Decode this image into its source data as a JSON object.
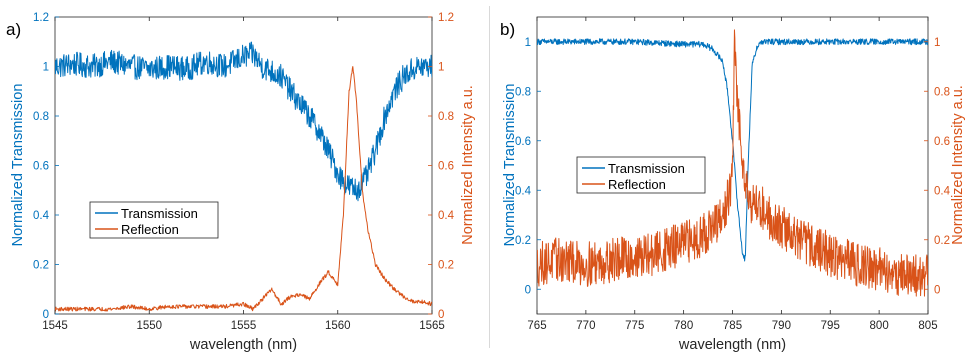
{
  "colors": {
    "transmission": "#0072BD",
    "reflection": "#D95319",
    "axis": "#262626",
    "legend_border": "#262626"
  },
  "chart_data": [
    {
      "type": "line",
      "panel_label": "a)",
      "xlabel": "wavelength (nm)",
      "ylabel_left": "Normalized Transmission",
      "ylabel_right": "Normalized Intensity a.u.",
      "xlim": [
        1545,
        1565
      ],
      "ylim_left": [
        0,
        1.2
      ],
      "ylim_right": [
        0,
        1.2
      ],
      "x_ticks": [
        "1545",
        "1550",
        "1555",
        "1560",
        "1565"
      ],
      "y_ticks_left": [
        "0",
        "0.2",
        "0.4",
        "0.6",
        "0.8",
        "1",
        "1.2"
      ],
      "y_ticks_right": [
        "0",
        "0.2",
        "0.4",
        "0.6",
        "0.8",
        "1",
        "1.2"
      ],
      "grid": false,
      "legend_position": "center-left",
      "series": [
        {
          "name": "Transmission",
          "axis": "left",
          "x": [
            1545,
            1546,
            1547,
            1548,
            1549,
            1550,
            1551,
            1552,
            1553,
            1554,
            1555,
            1555.5,
            1556,
            1557,
            1557.5,
            1558,
            1558.5,
            1559,
            1559.5,
            1560,
            1560.5,
            1561,
            1561.5,
            1562,
            1562.5,
            1563,
            1563.5,
            1564,
            1564.5,
            1565
          ],
          "y": [
            1.0,
            1.01,
            1.0,
            1.02,
            1.0,
            0.99,
            1.0,
            0.99,
            1.02,
            1.0,
            1.04,
            1.05,
            1.0,
            0.96,
            0.9,
            0.85,
            0.8,
            0.74,
            0.66,
            0.57,
            0.52,
            0.5,
            0.55,
            0.66,
            0.8,
            0.9,
            0.96,
            0.99,
            1.0,
            1.0
          ],
          "noise_amplitude": 0.05
        },
        {
          "name": "Reflection",
          "axis": "right",
          "x": [
            1545,
            1546,
            1547,
            1548,
            1549,
            1550,
            1551,
            1552,
            1553,
            1554,
            1555,
            1555.5,
            1556,
            1556.5,
            1557,
            1557.5,
            1558,
            1558.5,
            1559,
            1559.5,
            1560,
            1560.3,
            1560.6,
            1560.8,
            1561,
            1561.3,
            1561.6,
            1562,
            1562.5,
            1563,
            1563.5,
            1564,
            1564.5,
            1565
          ],
          "y": [
            0.02,
            0.02,
            0.02,
            0.02,
            0.03,
            0.02,
            0.03,
            0.03,
            0.03,
            0.03,
            0.04,
            0.02,
            0.06,
            0.1,
            0.04,
            0.07,
            0.08,
            0.06,
            0.12,
            0.17,
            0.12,
            0.4,
            0.9,
            1.0,
            0.85,
            0.5,
            0.34,
            0.2,
            0.14,
            0.1,
            0.07,
            0.05,
            0.05,
            0.04
          ],
          "noise_amplitude": 0.008
        }
      ]
    },
    {
      "type": "line",
      "panel_label": "b)",
      "xlabel": "wavelength (nm)",
      "ylabel_left": "Normalized Transmission",
      "ylabel_right": "Normalized Intensity a.u.",
      "xlim": [
        765,
        805
      ],
      "ylim_left": [
        -0.1,
        1.1
      ],
      "ylim_right": [
        -0.1,
        1.1
      ],
      "x_ticks": [
        "765",
        "770",
        "775",
        "780",
        "785",
        "790",
        "795",
        "800",
        "805"
      ],
      "y_ticks_left": [
        "0",
        "0.2",
        "0.4",
        "0.6",
        "0.8",
        "1"
      ],
      "y_ticks_right": [
        "0",
        "0.2",
        "0.4",
        "0.6",
        "0.8",
        "1"
      ],
      "grid": false,
      "legend_position": "center-left",
      "series": [
        {
          "name": "Transmission",
          "axis": "left",
          "x": [
            765,
            770,
            775,
            780,
            782,
            783,
            784,
            784.5,
            785,
            785.5,
            786,
            786.3,
            786.6,
            787,
            787.5,
            788,
            790,
            795,
            800,
            805
          ],
          "y": [
            1.0,
            1.0,
            1.0,
            0.99,
            0.99,
            0.97,
            0.92,
            0.8,
            0.6,
            0.35,
            0.15,
            0.12,
            0.5,
            0.9,
            0.98,
            1.0,
            1.0,
            1.0,
            1.0,
            1.0
          ],
          "noise_amplitude": 0.012
        },
        {
          "name": "Reflection",
          "axis": "right",
          "x": [
            765,
            767,
            770,
            773,
            776,
            779,
            781,
            783,
            784,
            785,
            785.2,
            785.4,
            785.6,
            786,
            786.5,
            787,
            788,
            789,
            790,
            792,
            794,
            796,
            798,
            800,
            802,
            805
          ],
          "y": [
            0.1,
            0.12,
            0.1,
            0.12,
            0.13,
            0.17,
            0.2,
            0.25,
            0.28,
            0.45,
            1.0,
            0.85,
            0.7,
            0.55,
            0.4,
            0.35,
            0.33,
            0.28,
            0.25,
            0.2,
            0.16,
            0.12,
            0.1,
            0.08,
            0.06,
            0.05
          ],
          "noise_amplitude": 0.09
        }
      ]
    }
  ]
}
